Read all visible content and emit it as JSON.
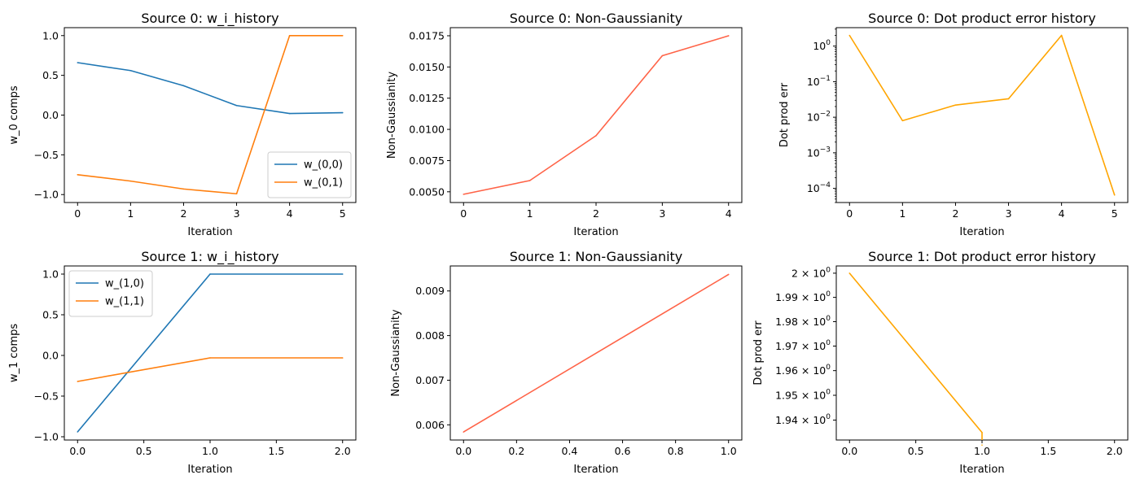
{
  "chart_data": [
    {
      "type": "line",
      "title": "Source 0: w_i_history",
      "xlabel": "Iteration",
      "ylabel": "w_0 comps",
      "x": [
        0,
        1,
        2,
        3,
        4,
        5
      ],
      "series": [
        {
          "name": "w_(0,0)",
          "color": "#1f77b4",
          "values": [
            0.66,
            0.56,
            0.37,
            0.12,
            0.02,
            0.03
          ]
        },
        {
          "name": "w_(0,1)",
          "color": "#ff7f0e",
          "values": [
            -0.75,
            -0.83,
            -0.93,
            -0.99,
            1.0,
            1.0
          ]
        }
      ],
      "xlim": [
        -0.25,
        5.25
      ],
      "ylim": [
        -1.1,
        1.1
      ],
      "xticks": [
        0,
        1,
        2,
        3,
        4,
        5
      ],
      "xtick_labels": [
        "0",
        "1",
        "2",
        "3",
        "4",
        "5"
      ],
      "yticks": [
        -1.0,
        -0.5,
        0.0,
        0.5,
        1.0
      ],
      "ytick_labels": [
        "−1.0",
        "−0.5",
        "0.0",
        "0.5",
        "1.0"
      ],
      "yscale": "linear",
      "legend": "lower-right"
    },
    {
      "type": "line",
      "title": "Source 0: Non-Gaussianity",
      "xlabel": "Iteration",
      "ylabel": "Non-Gaussianity",
      "x": [
        0,
        1,
        2,
        3,
        4
      ],
      "series": [
        {
          "color": "#ff6347",
          "values": [
            0.0048,
            0.0059,
            0.0095,
            0.0159,
            0.0175
          ]
        }
      ],
      "xlim": [
        -0.2,
        4.2
      ],
      "ylim": [
        0.00414,
        0.01815
      ],
      "xticks": [
        0,
        1,
        2,
        3,
        4
      ],
      "xtick_labels": [
        "0",
        "1",
        "2",
        "3",
        "4"
      ],
      "yticks": [
        0.005,
        0.0075,
        0.01,
        0.0125,
        0.015,
        0.0175
      ],
      "ytick_labels": [
        "0.0050",
        "0.0075",
        "0.0100",
        "0.0125",
        "0.0150",
        "0.0175"
      ],
      "yscale": "linear",
      "legend": "none"
    },
    {
      "type": "line",
      "title": "Source 0: Dot product error history",
      "xlabel": "Iteration",
      "ylabel": "Dot prod err",
      "x": [
        0,
        1,
        2,
        3,
        4,
        5
      ],
      "series": [
        {
          "color": "#ffa500",
          "values": [
            2.0,
            0.008,
            0.022,
            0.033,
            2.0,
            6.5e-05
          ]
        }
      ],
      "xlim": [
        -0.25,
        5.25
      ],
      "ylim": [
        4e-05,
        3.3
      ],
      "xticks": [
        0,
        1,
        2,
        3,
        4,
        5
      ],
      "xtick_labels": [
        "0",
        "1",
        "2",
        "3",
        "4",
        "5"
      ],
      "yticks": [
        1,
        0.1,
        0.01,
        0.001,
        0.0001
      ],
      "ytick_labels": [
        [
          "10",
          "0"
        ],
        [
          "10",
          "−1"
        ],
        [
          "10",
          "−2"
        ],
        [
          "10",
          "−3"
        ],
        [
          "10",
          "−4"
        ]
      ],
      "yscale": "log",
      "legend": "none"
    },
    {
      "type": "line",
      "title": "Source 1: w_i_history",
      "xlabel": "Iteration",
      "ylabel": "w_1 comps",
      "x": [
        0,
        1,
        2
      ],
      "series": [
        {
          "name": "w_(1,0)",
          "color": "#1f77b4",
          "values": [
            -0.94,
            1.0,
            1.0
          ]
        },
        {
          "name": "w_(1,1)",
          "color": "#ff7f0e",
          "values": [
            -0.32,
            -0.03,
            -0.03
          ]
        }
      ],
      "xlim": [
        -0.1,
        2.1
      ],
      "ylim": [
        -1.04,
        1.1
      ],
      "xticks": [
        0,
        0.5,
        1,
        1.5,
        2
      ],
      "xtick_labels": [
        "0.0",
        "0.5",
        "1.0",
        "1.5",
        "2.0"
      ],
      "yticks": [
        -1.0,
        -0.5,
        0.0,
        0.5,
        1.0
      ],
      "ytick_labels": [
        "−1.0",
        "−0.5",
        "0.0",
        "0.5",
        "1.0"
      ],
      "yscale": "linear",
      "legend": "upper-left"
    },
    {
      "type": "line",
      "title": "Source 1: Non-Gaussianity",
      "xlabel": "Iteration",
      "ylabel": "Non-Gaussianity",
      "x": [
        0,
        1
      ],
      "series": [
        {
          "color": "#ff6347",
          "values": [
            0.00584,
            0.00937
          ]
        }
      ],
      "xlim": [
        -0.05,
        1.05
      ],
      "ylim": [
        0.00566,
        0.00956
      ],
      "xticks": [
        0,
        0.2,
        0.4,
        0.6,
        0.8,
        1.0
      ],
      "xtick_labels": [
        "0.0",
        "0.2",
        "0.4",
        "0.6",
        "0.8",
        "1.0"
      ],
      "yticks": [
        0.006,
        0.007,
        0.008,
        0.009
      ],
      "ytick_labels": [
        "0.006",
        "0.007",
        "0.008",
        "0.009"
      ],
      "yscale": "linear",
      "legend": "none"
    },
    {
      "type": "line",
      "title": "Source 1: Dot product error history",
      "xlabel": "Iteration",
      "ylabel": "Dot prod err",
      "x": [
        0,
        1,
        1
      ],
      "series": [
        {
          "color": "#ffa500",
          "values": [
            2.0,
            1.935,
            1.93
          ]
        }
      ],
      "xlim": [
        -0.1,
        2.1
      ],
      "ylim": [
        1.932,
        2.003
      ],
      "xticks": [
        0,
        0.5,
        1,
        1.5,
        2
      ],
      "xtick_labels": [
        "0.0",
        "0.5",
        "1.0",
        "1.5",
        "2.0"
      ],
      "yticks": [
        2.0,
        1.99,
        1.98,
        1.97,
        1.96,
        1.95,
        1.94
      ],
      "ytick_labels": [
        [
          "2 × 10",
          "0"
        ],
        [
          "1.99 × 10",
          "0"
        ],
        [
          "1.98 × 10",
          "0"
        ],
        [
          "1.97 × 10",
          "0"
        ],
        [
          "1.96 × 10",
          "0"
        ],
        [
          "1.95 × 10",
          "0"
        ],
        [
          "1.94 × 10",
          "0"
        ]
      ],
      "yscale": "log",
      "legend": "none"
    }
  ]
}
